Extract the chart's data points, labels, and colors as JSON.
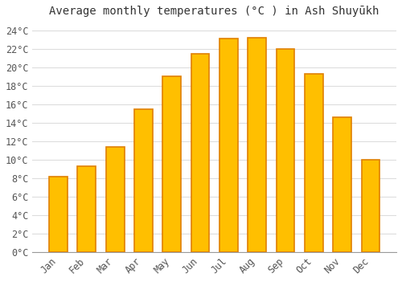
{
  "title": "Average monthly temperatures (°C ) in Ash Shuyūkh",
  "months": [
    "Jan",
    "Feb",
    "Mar",
    "Apr",
    "May",
    "Jun",
    "Jul",
    "Aug",
    "Sep",
    "Oct",
    "Nov",
    "Dec"
  ],
  "values": [
    8.2,
    9.3,
    11.4,
    15.5,
    19.0,
    21.5,
    23.1,
    23.2,
    22.0,
    19.3,
    14.6,
    10.0
  ],
  "bar_color_face": "#FFBF00",
  "bar_color_edge": "#E08000",
  "background_color": "#FFFFFF",
  "grid_color": "#DDDDDD",
  "ylim": [
    0,
    25
  ],
  "ytick_step": 2,
  "title_fontsize": 10,
  "tick_fontsize": 8.5,
  "font_family": "monospace"
}
